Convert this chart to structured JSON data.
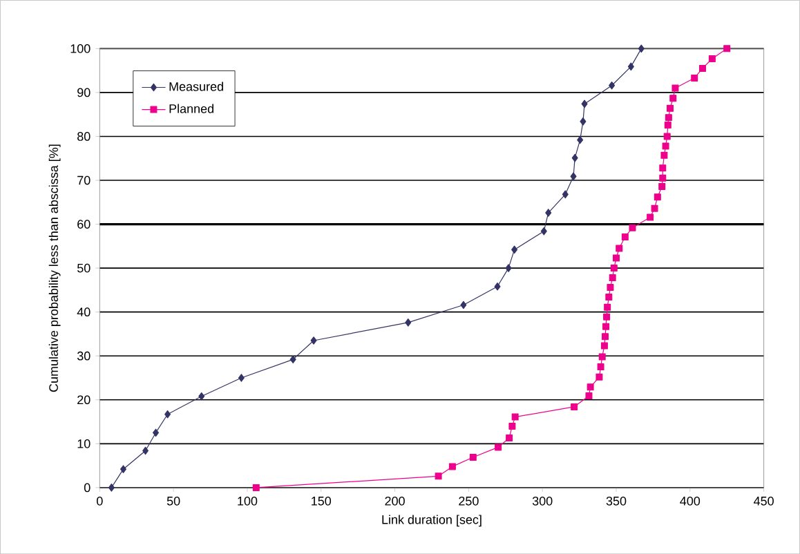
{
  "chart_data": {
    "type": "line",
    "xlabel": "Link duration [sec]",
    "ylabel": "Cumulative probability less than abscissa [%]",
    "xlim": [
      0,
      450
    ],
    "xticks": [
      0,
      50,
      100,
      150,
      200,
      250,
      300,
      350,
      400,
      450
    ],
    "ylim": [
      0,
      100
    ],
    "yticks": [
      0,
      10,
      20,
      30,
      40,
      50,
      60,
      70,
      80,
      90,
      100
    ],
    "grid": "y",
    "legend": "top left",
    "line_style": "solid",
    "ref_lines": [
      {
        "axis": "y",
        "value": 60,
        "color": "#000000"
      }
    ],
    "series": [
      {
        "name": "Measured",
        "color": "#333366",
        "marker": "diamond",
        "x": [
          8,
          16,
          31,
          38,
          46,
          69,
          96,
          131,
          145,
          209,
          246.5,
          269.5,
          277,
          281,
          301,
          304,
          315.5,
          321,
          322,
          325.5,
          327.5,
          328.5,
          347,
          360,
          367
        ],
        "values": [
          0,
          4.2,
          8.4,
          12.5,
          16.7,
          20.8,
          25,
          29.2,
          33.5,
          37.6,
          41.6,
          45.8,
          50,
          54.2,
          58.4,
          62.6,
          66.8,
          70.9,
          75.1,
          79.2,
          83.4,
          87.4,
          91.6,
          95.9,
          100
        ]
      },
      {
        "name": "Planned",
        "color": "#ec008c",
        "marker": "square",
        "x": [
          106,
          229.5,
          239,
          253,
          270,
          277.5,
          279.5,
          281.5,
          321.5,
          331.5,
          332.5,
          338.5,
          339.5,
          340.5,
          342,
          342.5,
          343,
          343.5,
          344,
          345,
          346,
          347.5,
          348.5,
          350,
          352,
          356,
          361,
          373,
          376,
          378,
          381,
          381.5,
          381.5,
          382.5,
          383.5,
          384.5,
          385,
          385.5,
          386.5,
          388.5,
          390,
          403,
          408.5,
          415,
          425
        ],
        "values": [
          0,
          2.6,
          4.8,
          6.9,
          9.2,
          11.3,
          14,
          16.1,
          18.4,
          20.9,
          22.9,
          25.2,
          27.5,
          29.8,
          32.3,
          34.4,
          36.7,
          38.9,
          41.1,
          43.4,
          45.6,
          47.8,
          50,
          52.3,
          54.5,
          57.1,
          59.2,
          61.6,
          63.6,
          66.2,
          68.6,
          70.5,
          72.8,
          75.7,
          77.8,
          80,
          82.6,
          84.3,
          86.4,
          88.7,
          91,
          93.3,
          95.5,
          97.7,
          100
        ]
      }
    ]
  }
}
